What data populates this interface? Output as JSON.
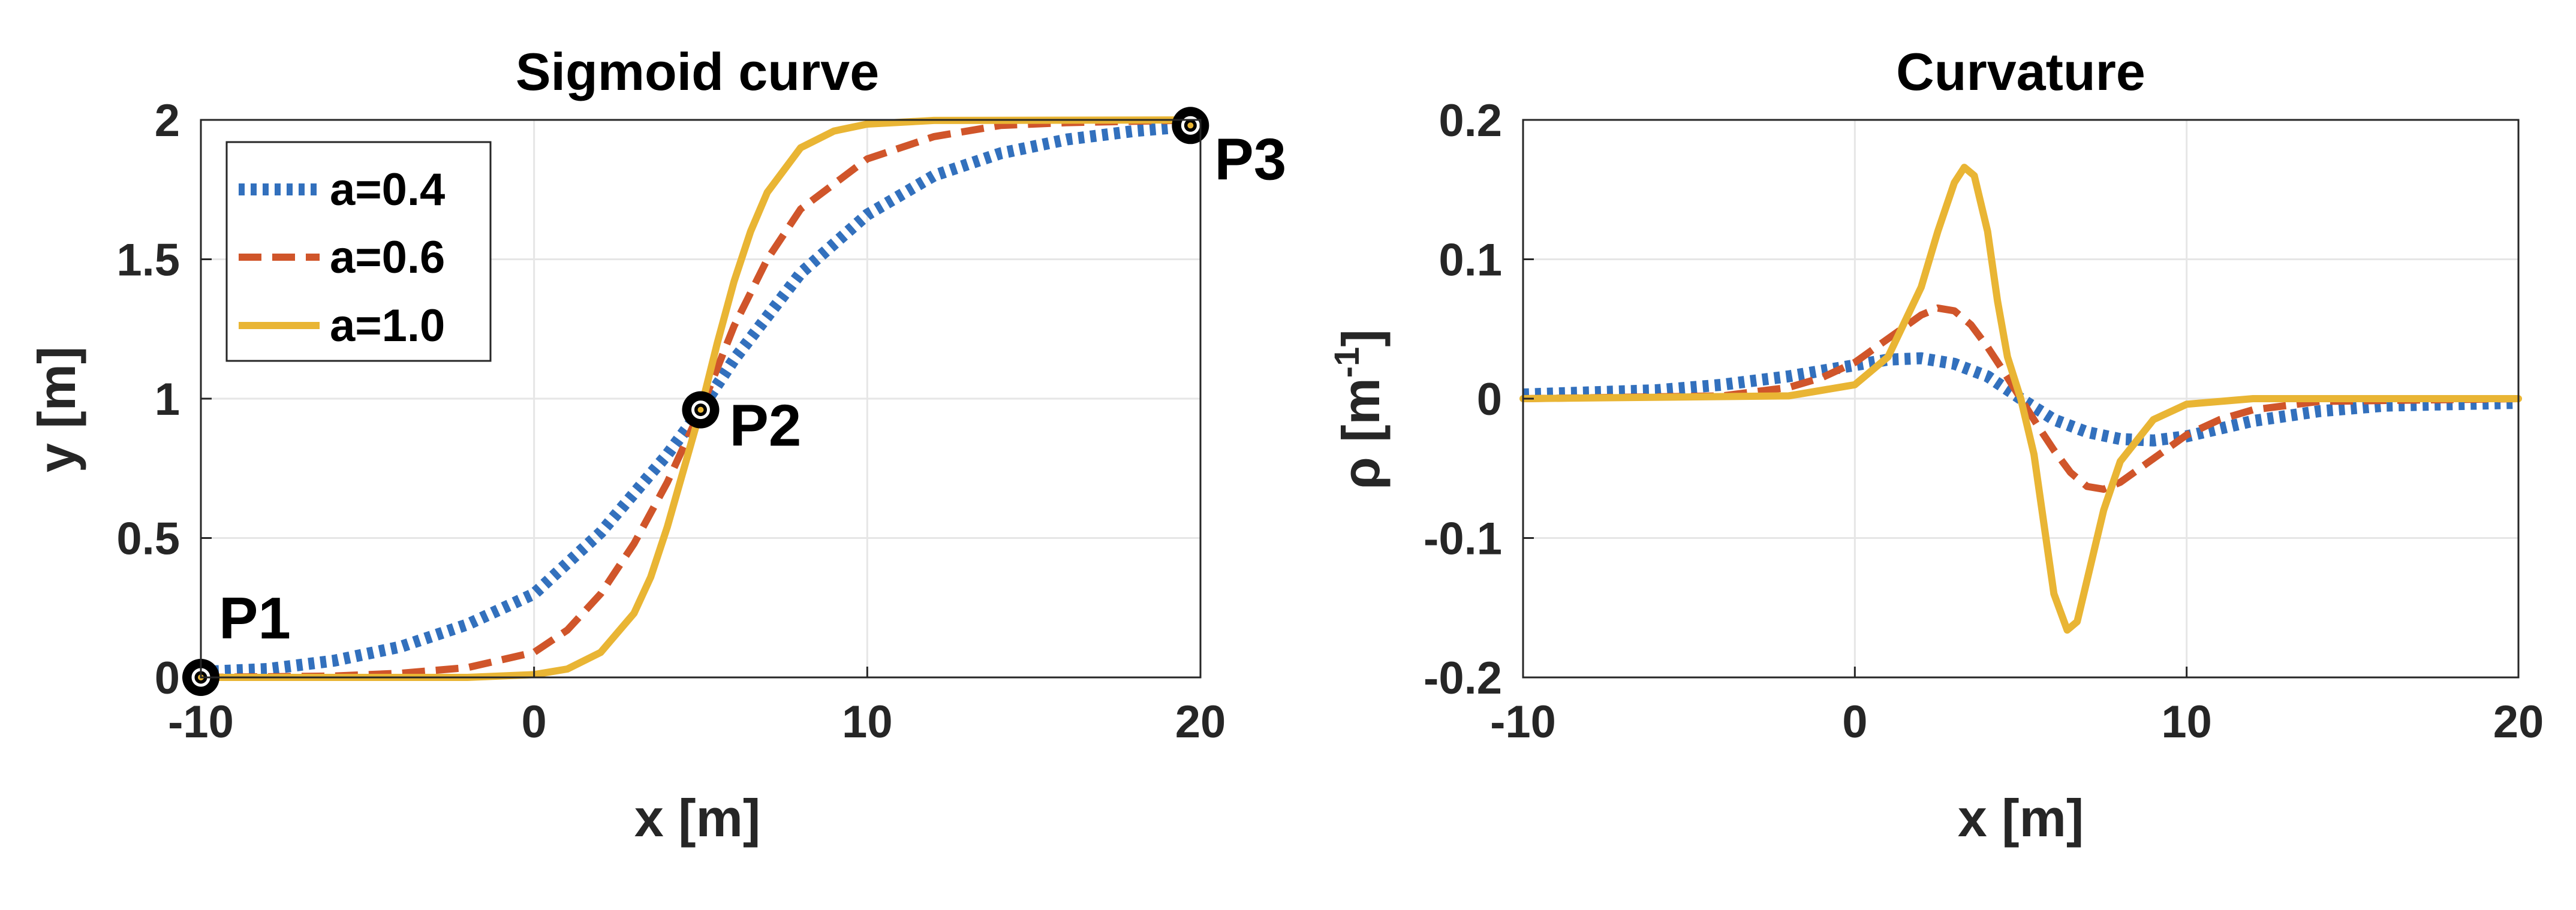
{
  "chart_data": [
    {
      "type": "line",
      "title": "Sigmoid curve",
      "xlabel": "x [m]",
      "ylabel": "y [m]",
      "xlim": [
        -10,
        20
      ],
      "ylim": [
        0,
        2
      ],
      "xticks": [
        "-10",
        "0",
        "10",
        "20"
      ],
      "yticks": [
        "0",
        "0.5",
        "1",
        "1.5",
        "2"
      ],
      "grid": true,
      "legend_position": "top-left",
      "series": [
        {
          "name": "a=0.4",
          "style": "dotted",
          "color": "#3270bd",
          "x": [
            -10,
            -8,
            -6,
            -4,
            -2,
            0,
            2,
            4,
            5,
            6,
            8,
            10,
            12,
            14,
            16,
            18,
            20
          ],
          "y": [
            0.02,
            0.03,
            0.06,
            0.11,
            0.19,
            0.3,
            0.52,
            0.8,
            0.96,
            1.14,
            1.45,
            1.66,
            1.8,
            1.88,
            1.93,
            1.96,
            1.98
          ]
        },
        {
          "name": "a=0.6",
          "style": "dashed",
          "color": "#d0552a",
          "x": [
            -10,
            -6,
            -4,
            -2,
            0,
            1,
            2,
            3,
            4,
            5,
            6,
            7,
            8,
            10,
            12,
            14,
            16,
            20
          ],
          "y": [
            0.0,
            0.005,
            0.015,
            0.035,
            0.09,
            0.17,
            0.3,
            0.48,
            0.7,
            0.96,
            1.26,
            1.5,
            1.68,
            1.86,
            1.94,
            1.98,
            1.99,
            2.0
          ]
        },
        {
          "name": "a=1.0",
          "style": "solid",
          "color": "#e9b534",
          "x": [
            -10,
            -2,
            0,
            1,
            2,
            3,
            3.5,
            4,
            4.5,
            5,
            5.5,
            6,
            6.5,
            7,
            8,
            9,
            10,
            12,
            20
          ],
          "y": [
            0.0,
            0.0,
            0.01,
            0.03,
            0.09,
            0.23,
            0.36,
            0.54,
            0.75,
            0.96,
            1.2,
            1.42,
            1.6,
            1.74,
            1.9,
            1.96,
            1.985,
            1.998,
            2.0
          ]
        }
      ],
      "annotations": [
        {
          "label": "P1",
          "x": -10,
          "y": 0.0
        },
        {
          "label": "P2",
          "x": 5,
          "y": 0.96
        },
        {
          "label": "P3",
          "x": 19.7,
          "y": 1.98
        }
      ]
    },
    {
      "type": "line",
      "title": "Curvature",
      "xlabel": "x [m]",
      "ylabel": "ρ [m",
      "ylabel_superscript": "-1",
      "ylabel_suffix": "]",
      "xlim": [
        -10,
        20
      ],
      "ylim": [
        -0.2,
        0.2
      ],
      "xticks": [
        "-10",
        "0",
        "10",
        "20"
      ],
      "yticks": [
        "-0.2",
        "-0.1",
        "0",
        "0.1",
        "0.2"
      ],
      "grid": true,
      "series": [
        {
          "name": "a=0.4",
          "style": "dotted",
          "color": "#3270bd",
          "x": [
            -10,
            -6,
            -4,
            -2,
            0,
            1,
            2,
            3,
            4,
            5,
            6,
            7,
            8,
            9,
            10,
            12,
            14,
            16,
            20
          ],
          "y": [
            0.003,
            0.006,
            0.01,
            0.016,
            0.024,
            0.028,
            0.029,
            0.025,
            0.016,
            0.0,
            -0.015,
            -0.024,
            -0.029,
            -0.03,
            -0.027,
            -0.016,
            -0.009,
            -0.005,
            -0.003
          ]
        },
        {
          "name": "a=0.6",
          "style": "dashed",
          "color": "#d0552a",
          "x": [
            -10,
            -4,
            -2,
            -1,
            0,
            1,
            2,
            2.5,
            3,
            3.5,
            4,
            4.5,
            5,
            5.5,
            6,
            6.5,
            7,
            7.5,
            8,
            9,
            10,
            11,
            12,
            14,
            20
          ],
          "y": [
            0.0,
            0.002,
            0.008,
            0.015,
            0.026,
            0.043,
            0.06,
            0.065,
            0.063,
            0.053,
            0.037,
            0.019,
            0.0,
            -0.019,
            -0.037,
            -0.053,
            -0.063,
            -0.065,
            -0.06,
            -0.043,
            -0.026,
            -0.015,
            -0.008,
            -0.002,
            0.0
          ]
        },
        {
          "name": "a=1.0",
          "style": "solid",
          "color": "#e9b534",
          "x": [
            -10,
            -2,
            0,
            1,
            2,
            2.5,
            3,
            3.3,
            3.6,
            4,
            4.3,
            4.6,
            5,
            5.4,
            5.7,
            6,
            6.4,
            6.7,
            7,
            7.5,
            8,
            9,
            10,
            12,
            20
          ],
          "y": [
            0.0,
            0.002,
            0.01,
            0.03,
            0.08,
            0.12,
            0.155,
            0.166,
            0.16,
            0.12,
            0.07,
            0.03,
            0.0,
            -0.04,
            -0.09,
            -0.14,
            -0.166,
            -0.16,
            -0.13,
            -0.08,
            -0.045,
            -0.015,
            -0.004,
            0.0,
            0.0
          ]
        }
      ]
    }
  ]
}
